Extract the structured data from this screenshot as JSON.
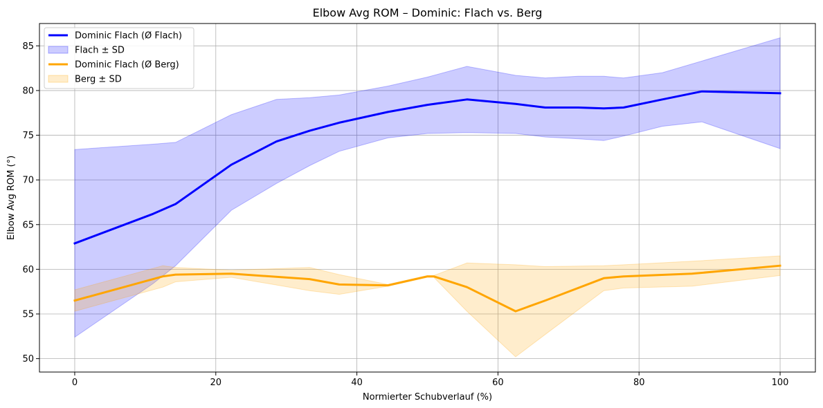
{
  "chart_data": {
    "type": "line",
    "title": "Elbow Avg ROM – Dominic: Flach vs. Berg",
    "xlabel": "Normierter Schubverlauf (%)",
    "ylabel": "Elbow Avg ROM (°)",
    "xlim": [
      -5,
      105
    ],
    "ylim": [
      48.5,
      87.5
    ],
    "xticks": [
      0,
      20,
      40,
      60,
      80,
      100
    ],
    "yticks": [
      50,
      55,
      60,
      65,
      70,
      75,
      80,
      85
    ],
    "grid": true,
    "legend_position": "top-left",
    "series": [
      {
        "name": "Dominic Flach (Ø Flach)",
        "band_name": "Flach ± SD",
        "color": "#0000ff",
        "band_color": "#0000ff",
        "band_opacity": 0.2,
        "x": [
          0,
          11.1,
          14.3,
          22.2,
          28.6,
          33.3,
          37.5,
          44.4,
          50,
          55.6,
          62.5,
          66.7,
          71.4,
          75,
          77.8,
          83.3,
          88.9,
          100
        ],
        "y": [
          62.9,
          66.2,
          67.3,
          71.7,
          74.3,
          75.5,
          76.4,
          77.6,
          78.4,
          79.0,
          78.5,
          78.1,
          78.1,
          78.0,
          78.1,
          79.0,
          79.9,
          79.7
        ],
        "upper": [
          73.4,
          74.0,
          74.2,
          77.3,
          79.0,
          79.2,
          79.5,
          80.5,
          81.5,
          82.7,
          81.7,
          81.4,
          81.6,
          81.6,
          81.4,
          82.0,
          83.3,
          85.9
        ],
        "lower": [
          52.4,
          58.4,
          60.4,
          66.6,
          69.6,
          71.6,
          73.2,
          74.7,
          75.2,
          75.3,
          75.2,
          74.8,
          74.6,
          74.4,
          74.9,
          76.0,
          76.5,
          73.5
        ]
      },
      {
        "name": "Dominic Flach (Ø Berg)",
        "band_name": "Berg ± SD",
        "color": "#ffa500",
        "band_color": "#ffa500",
        "band_opacity": 0.2,
        "x": [
          0,
          12.5,
          14.3,
          22.2,
          33.3,
          37.5,
          44.4,
          50,
          50.9,
          55.6,
          62.5,
          66.7,
          75,
          77.8,
          87.5,
          100
        ],
        "y": [
          56.5,
          59.2,
          59.4,
          59.5,
          58.9,
          58.3,
          58.2,
          59.2,
          59.2,
          58.0,
          55.3,
          56.5,
          59.0,
          59.2,
          59.5,
          60.4
        ],
        "upper": [
          57.7,
          60.4,
          60.2,
          59.9,
          60.2,
          59.4,
          58.3,
          59.3,
          59.3,
          60.7,
          60.5,
          60.3,
          60.4,
          60.5,
          60.9,
          61.5
        ],
        "lower": [
          55.3,
          58.0,
          58.6,
          59.1,
          57.6,
          57.2,
          58.1,
          59.1,
          59.1,
          55.3,
          50.2,
          52.7,
          57.6,
          57.9,
          58.1,
          59.3
        ]
      }
    ]
  }
}
